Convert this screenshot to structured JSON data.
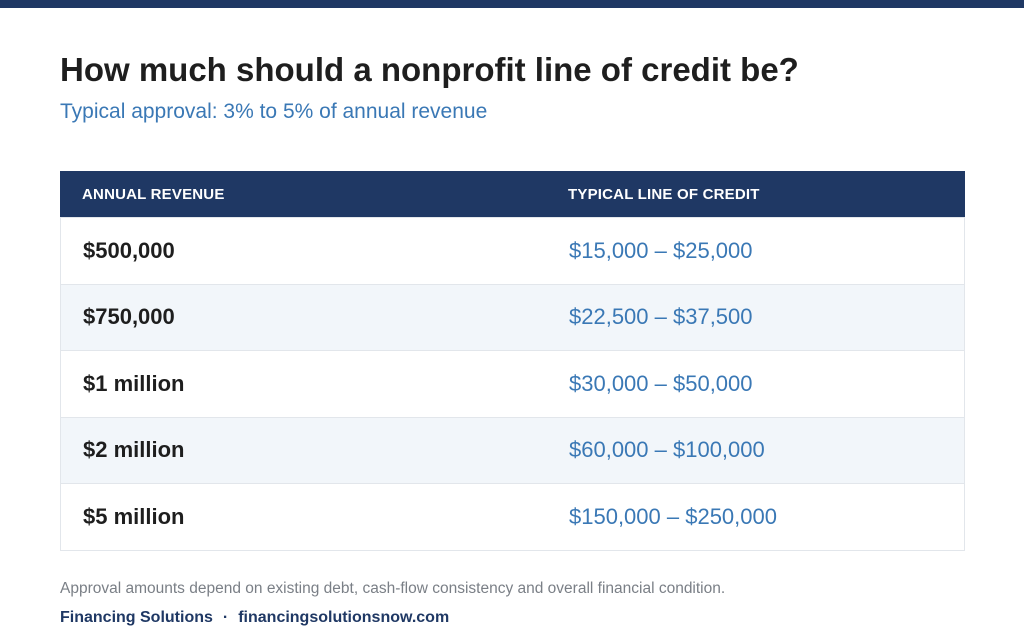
{
  "title": "How much should a nonprofit line of credit be?",
  "subtitle": "Typical approval: 3% to 5% of annual revenue",
  "table": {
    "headers": [
      "ANNUAL REVENUE",
      "TYPICAL LINE OF CREDIT"
    ],
    "rows": [
      {
        "revenue": "$500,000",
        "credit": "$15,000 – $25,000"
      },
      {
        "revenue": "$750,000",
        "credit": "$22,500 – $37,500"
      },
      {
        "revenue": "$1 million",
        "credit": "$30,000 – $50,000"
      },
      {
        "revenue": "$2 million",
        "credit": "$60,000 – $100,000"
      },
      {
        "revenue": "$5 million",
        "credit": "$150,000 – $250,000"
      }
    ]
  },
  "footnote": "Approval amounts depend on existing debt, cash-flow consistency and overall financial condition.",
  "footer": {
    "brand": "Financing Solutions",
    "separator": "·",
    "website": "financingsolutionsnow.com"
  },
  "colors": {
    "navy": "#1f3864",
    "accent_blue": "#3a78b5",
    "row_alt": "#f2f6fa"
  }
}
